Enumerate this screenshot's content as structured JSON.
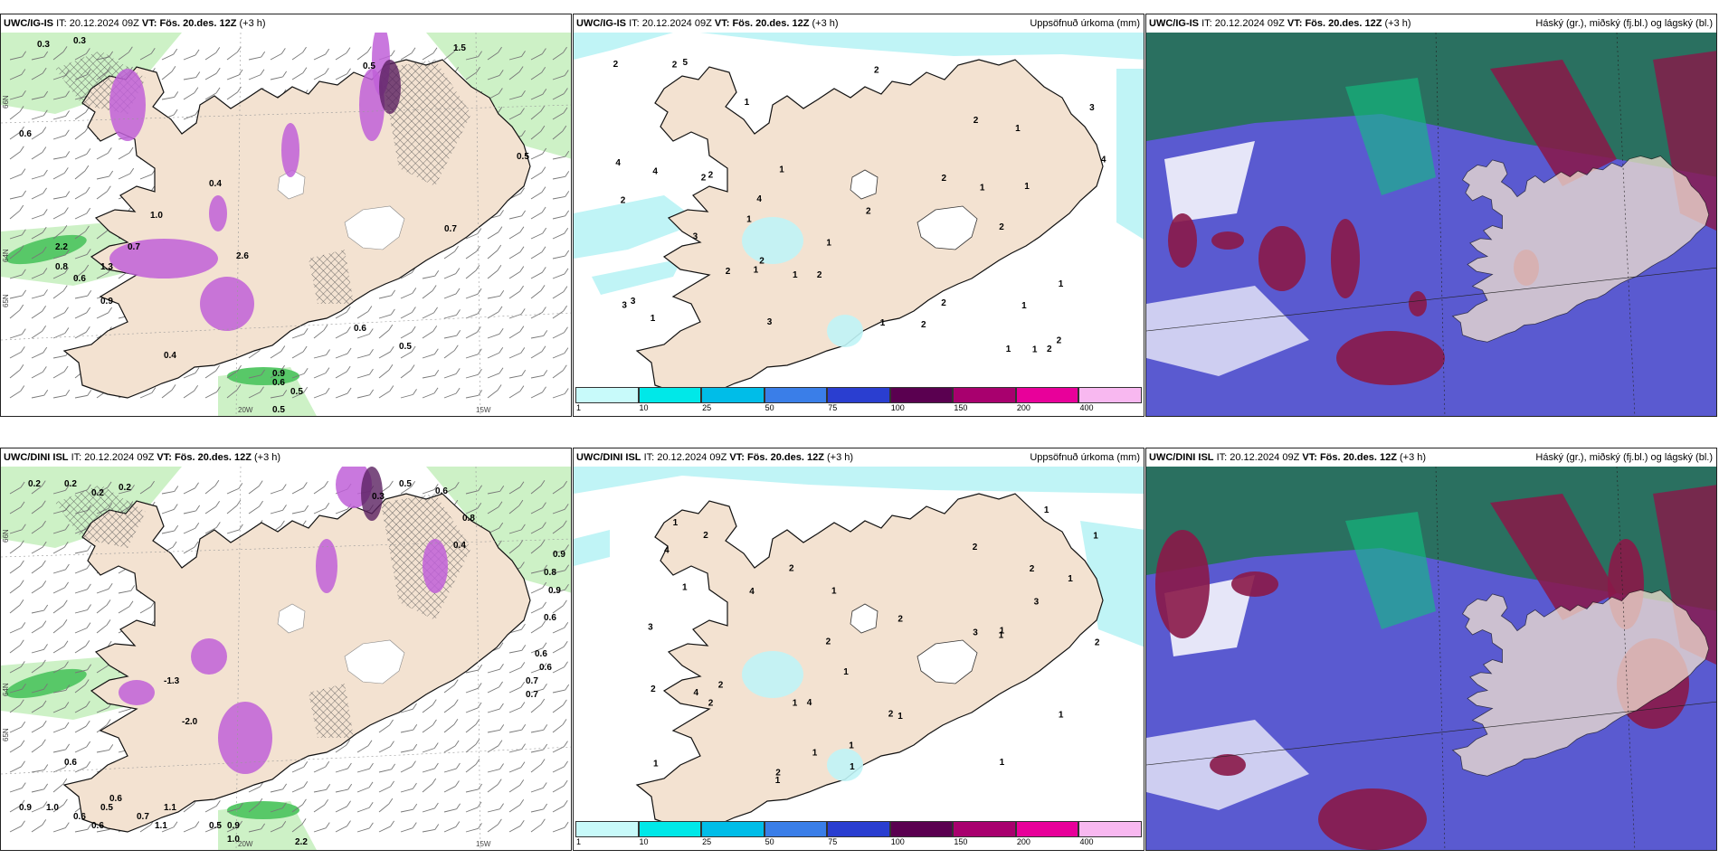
{
  "rows": [
    {
      "model": "UWC/IG-IS",
      "wind_panel": {
        "labels": [
          "0.3",
          "0.3",
          "0.6",
          "0.4",
          "0.5",
          "1.0",
          "0.7",
          "2.2",
          "0.8",
          "1.3",
          "0.6",
          "0.9",
          "2.6",
          "0.9",
          "0.5",
          "0.6",
          "0.5",
          "1.5",
          "0.7",
          "0.6",
          "0.5",
          "0.5",
          "0.4"
        ]
      },
      "precip_panel": {
        "labels": [
          "1",
          "2",
          "2",
          "2",
          "2",
          "1",
          "2",
          "1",
          "1",
          "1",
          "1",
          "2",
          "2",
          "1",
          "4",
          "2",
          "2",
          "4",
          "3",
          "1",
          "1",
          "2",
          "2",
          "2",
          "1",
          "2",
          "1",
          "3",
          "1",
          "3",
          "2",
          "1",
          "1",
          "1",
          "2",
          "4",
          "4",
          "5",
          "3",
          "3",
          "2",
          "2"
        ]
      }
    },
    {
      "model": "UWC/DINI ISL",
      "wind_panel": {
        "labels": [
          "0.2",
          "0.2",
          "0.2",
          "0.2",
          "0.5",
          "0.3",
          "0.6",
          "0.8",
          "0.4",
          "0.9",
          "0.8",
          "0.9",
          "0.6",
          "0.6",
          "0.6",
          "0.7",
          "0.7",
          "-1.3",
          "-2.0",
          "0.6",
          "0.6",
          "0.9",
          "1.0",
          "0.5",
          "0.7",
          "0.6",
          "0.6",
          "1.1",
          "1.1",
          "0.5",
          "0.9",
          "1.0",
          "2.2"
        ]
      },
      "precip_panel": {
        "labels": [
          "3",
          "1",
          "1",
          "1",
          "1",
          "2",
          "2",
          "4",
          "4",
          "2",
          "2",
          "2",
          "2",
          "1",
          "1",
          "1",
          "1",
          "1",
          "3",
          "2",
          "2",
          "4",
          "2",
          "1",
          "1",
          "1",
          "1",
          "1",
          "1",
          "2",
          "3",
          "1",
          "1",
          "2",
          "2",
          "4",
          "1"
        ]
      }
    }
  ],
  "common": {
    "it_label": "IT:",
    "it_value": "20.12.2024 09Z",
    "vt_label": "VT:",
    "vt_value": "Fös. 20.des. 12Z",
    "lead": "(+3 h)",
    "precip_title": "Uppsöfnuð úrkoma (mm)",
    "cloud_title": "Háský (gr.), miðský (fj.bl.) og lágský (bl.)",
    "lon_labels": [
      "20W",
      "15W"
    ],
    "lat_labels": [
      "66N",
      "64N",
      "65N"
    ]
  },
  "colorbar": {
    "ticks": [
      "1",
      "10",
      "25",
      "50",
      "75",
      "100",
      "150",
      "200",
      "400"
    ],
    "colors": [
      "#c8fafa",
      "#00e8e8",
      "#00bde8",
      "#3a7ee8",
      "#2a3ed0",
      "#5a0050",
      "#a8006e",
      "#e8009a",
      "#f8b8f0"
    ]
  },
  "colors": {
    "land": "#f3e2d1",
    "wind_green_light": "#c8f0c0",
    "wind_green": "#58c868",
    "wind_green_dark": "#0a5a22",
    "wind_magenta": "#c060d8",
    "wind_purple_dark": "#5a2060",
    "precip_cyan": "#c0f4f6",
    "cloud_teal": "#2a7060",
    "cloud_purple": "#5a5ad0",
    "cloud_maroon": "#8a1848",
    "cloud_green": "#10c080"
  }
}
